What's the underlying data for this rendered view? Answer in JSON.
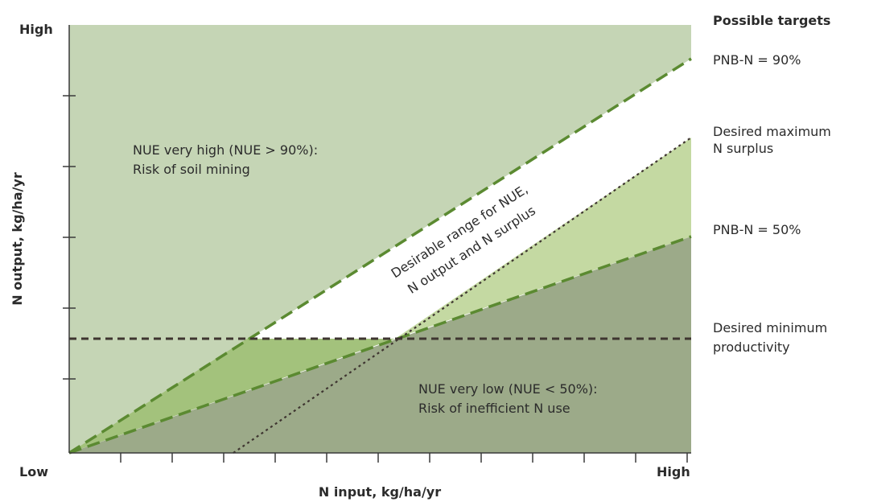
{
  "y_axis": {
    "title": "N output, kg/ha/yr",
    "high_label": "High"
  },
  "x_axis": {
    "title": "N input, kg/ha/yr",
    "low_label": "Low",
    "high_label": "High"
  },
  "regions": {
    "very_high": {
      "line1": "NUE very high (NUE > 90%):",
      "line2": "Risk of soil mining"
    },
    "desirable": {
      "line1": "Desirable range for NUE,",
      "line2": "N output and N surplus"
    },
    "very_low": {
      "line1": "NUE very low (NUE < 50%):",
      "line2": "Risk of inefficient N use"
    }
  },
  "targets": {
    "heading": "Possible targets",
    "pnb90": "PNB-N = 90%",
    "max_surplus_line1": "Desired maximum",
    "max_surplus_line2": "N surplus",
    "pnb50": "PNB-N = 50%",
    "min_prod_line1": "Desired minimum",
    "min_prod_line2": "productivity"
  },
  "colors": {
    "high_zone": "#c5d5b5",
    "low_zone": "#9caa89",
    "mid_light_green": "#c4d9a2",
    "mid_green": "#a3c27c",
    "line_green": "#5b8a31",
    "dark_dotted": "#3e3530"
  }
}
